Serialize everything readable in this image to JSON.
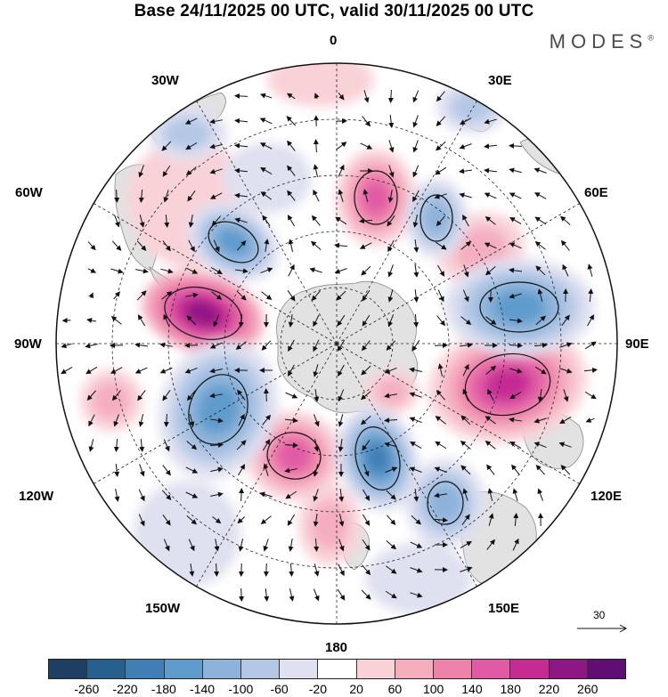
{
  "header": {
    "title": "Base 24/11/2025 00 UTC, valid 30/11/2025 00 UTC",
    "brand": "MODES",
    "brand_mark": "®"
  },
  "map": {
    "projection": "south-polar-stereographic",
    "longitude_labels": {
      "n": "0",
      "ne": "30E",
      "ene": "60E",
      "e": "90E",
      "ese": "120E",
      "se": "150E",
      "s": "180",
      "sw": "150W",
      "wsw": "120W",
      "w": "90W",
      "wnw": "60W",
      "nw": "30W"
    },
    "reference_vector": {
      "value": "30"
    },
    "colors": {
      "land": "#e2e2e2",
      "coast": "#8a8a8a",
      "grid": "#222222",
      "contour": "#111111"
    }
  },
  "colorbar": {
    "tick_labels": [
      "-260",
      "-220",
      "-180",
      "-140",
      "-100",
      "-60",
      "-20",
      "20",
      "60",
      "100",
      "140",
      "180",
      "220",
      "260"
    ],
    "colors": [
      "#1c3f62",
      "#275f8f",
      "#3f7fb6",
      "#5f9bcd",
      "#8db3da",
      "#b4c8e6",
      "#dfe0f0",
      "#ffffff",
      "#f9d2d8",
      "#f4aec0",
      "#ef82ab",
      "#e05aa5",
      "#c52b93",
      "#8f1785",
      "#5f0f73"
    ]
  }
}
